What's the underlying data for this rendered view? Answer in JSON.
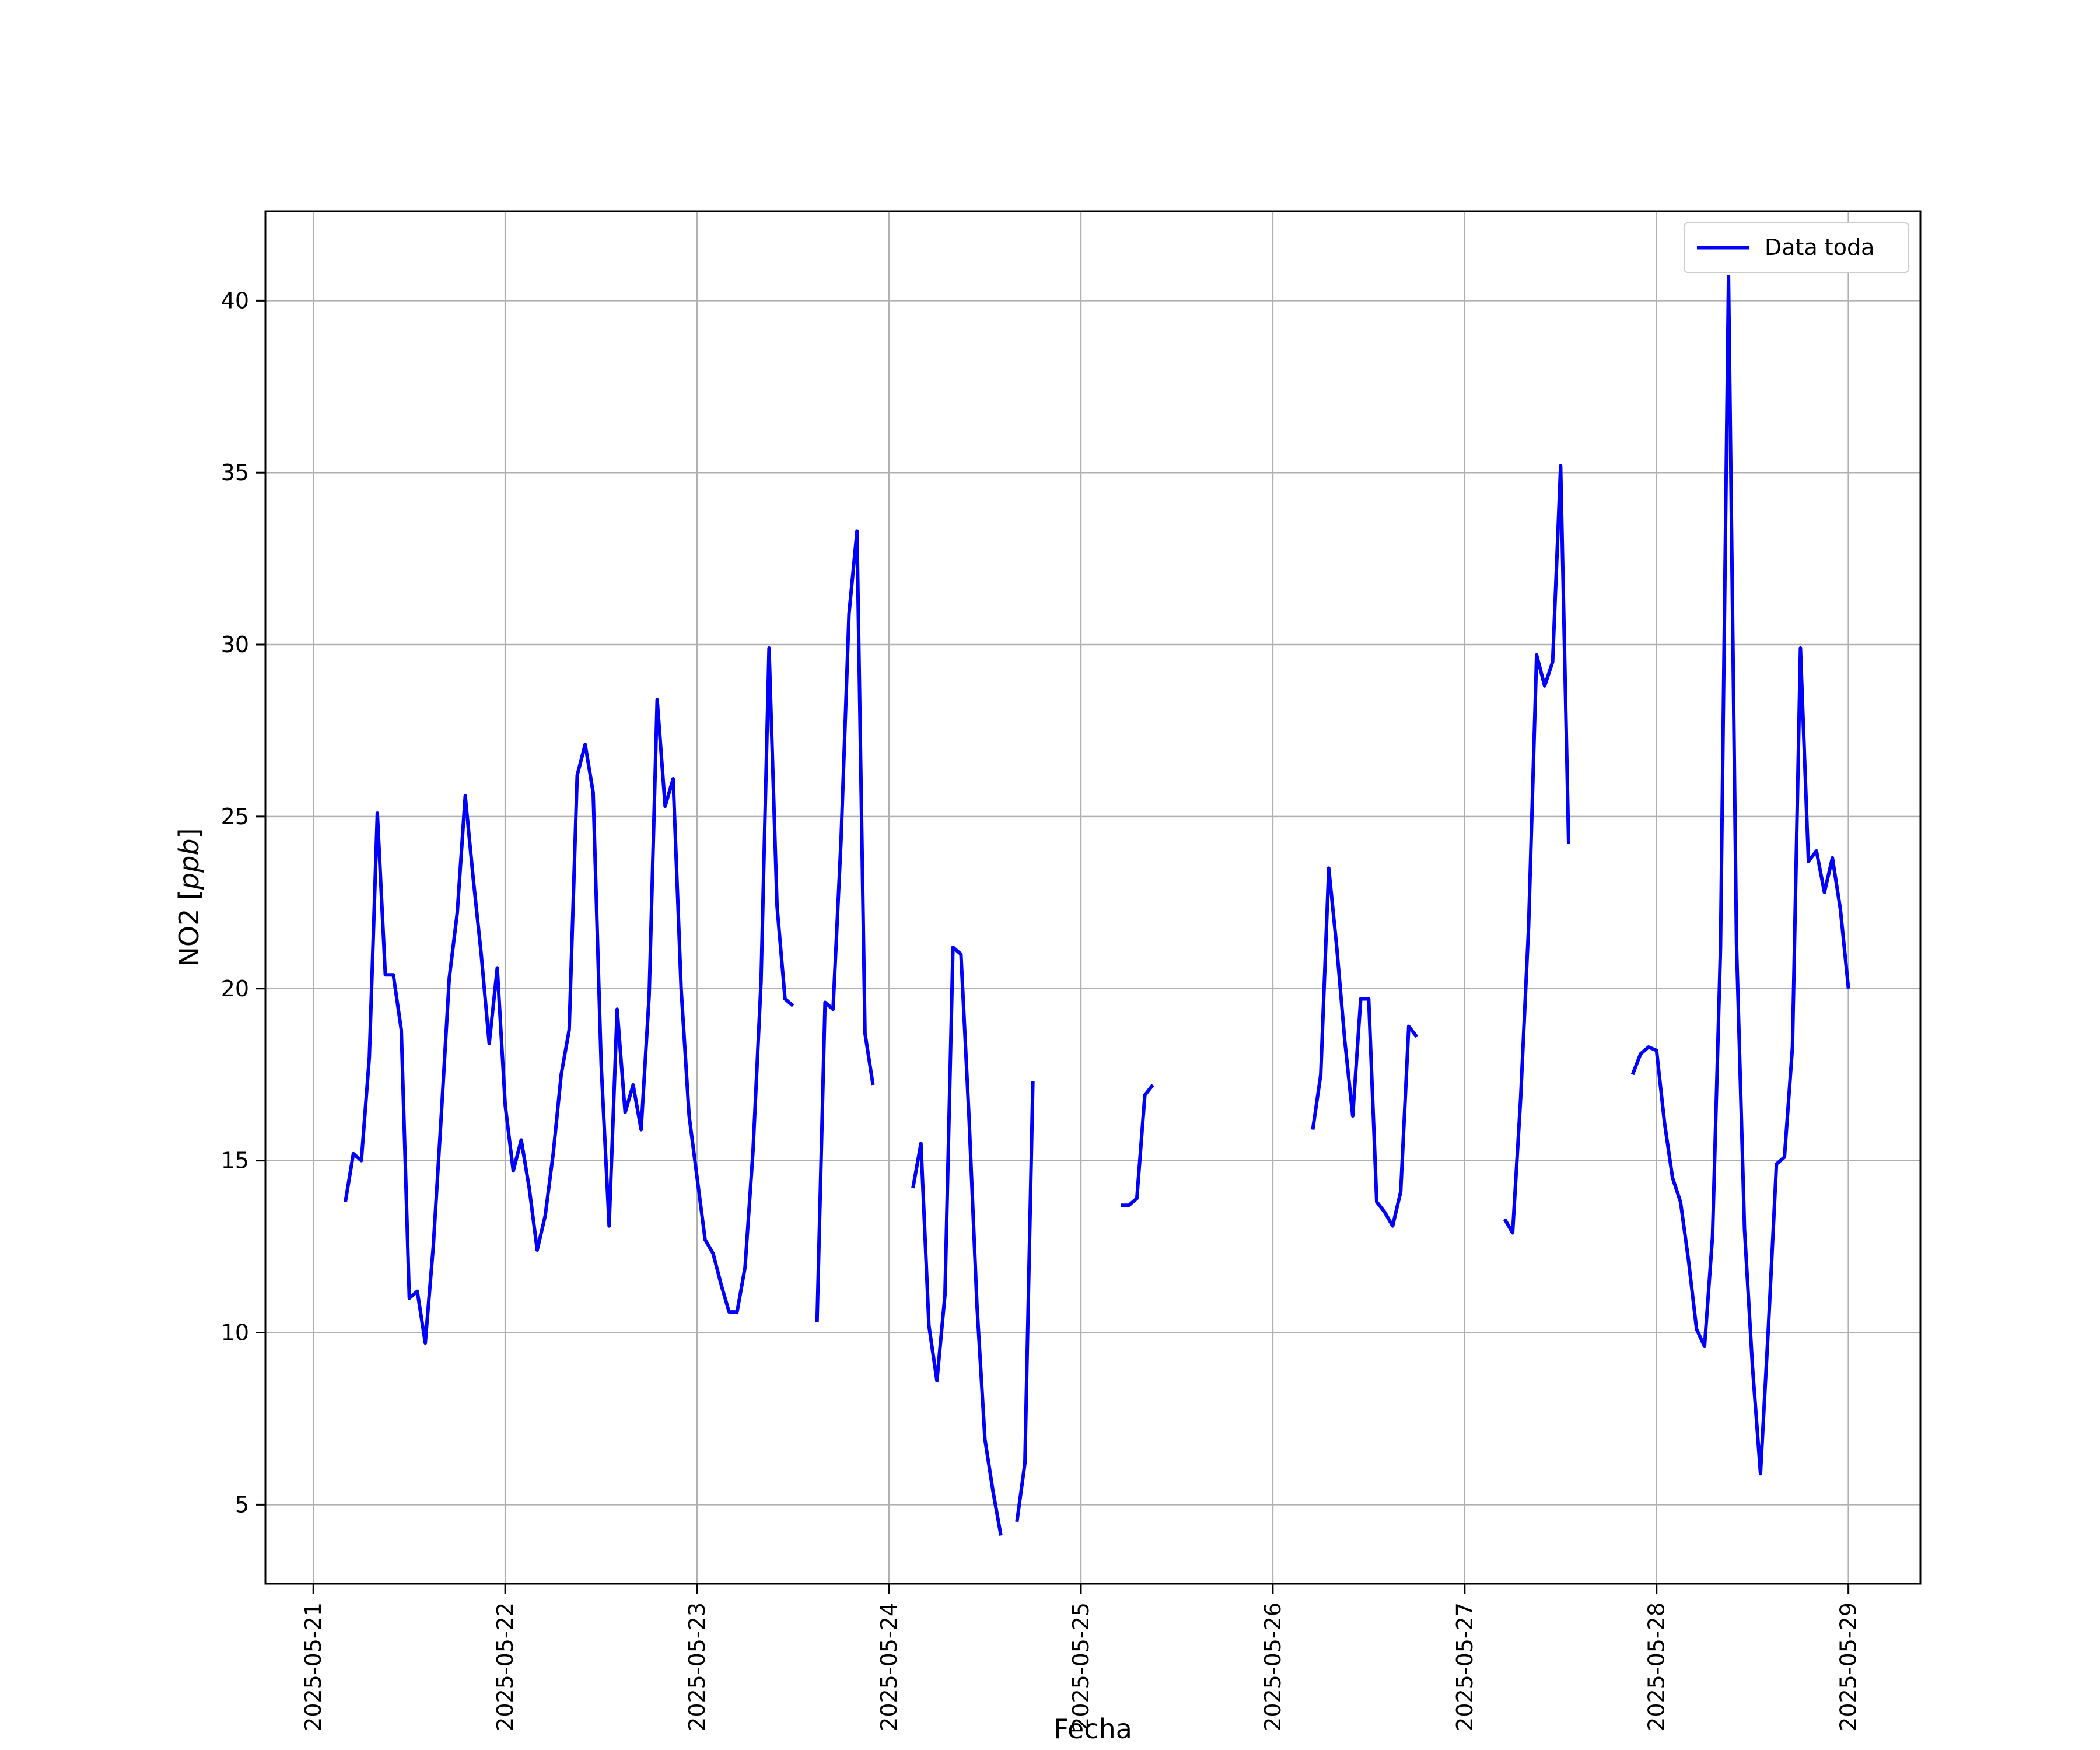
{
  "chart_data": {
    "type": "line",
    "xlabel": "Fecha",
    "ylabel": "NO2 [ppb]",
    "ylabel_text": "NO2 [",
    "ylabel_unit": "ppb",
    "ylabel_close": "]",
    "x_type": "datetime",
    "xlim": [
      "2025-05-20 18:00",
      "2025-05-29 09:00"
    ],
    "ylim": [
      2.7,
      42.6
    ],
    "x_ticks": [
      "2025-05-21",
      "2025-05-22",
      "2025-05-23",
      "2025-05-24",
      "2025-05-25",
      "2025-05-26",
      "2025-05-27",
      "2025-05-28",
      "2025-05-29"
    ],
    "y_ticks": [
      5,
      10,
      15,
      20,
      25,
      30,
      35,
      40
    ],
    "grid": true,
    "legend_position": "top-right",
    "series": [
      {
        "name": "Data toda",
        "color": "#0000ff",
        "segments": [
          [
            [
              "2025-05-21 04:00",
              13.8
            ],
            [
              "2025-05-21 05:00",
              15.2
            ],
            [
              "2025-05-21 06:00",
              15.0
            ],
            [
              "2025-05-21 07:00",
              18.0
            ],
            [
              "2025-05-21 08:00",
              25.1
            ],
            [
              "2025-05-21 09:00",
              20.4
            ],
            [
              "2025-05-21 10:00",
              20.4
            ],
            [
              "2025-05-21 11:00",
              18.8
            ],
            [
              "2025-05-21 12:00",
              11.0
            ],
            [
              "2025-05-21 13:00",
              11.2
            ],
            [
              "2025-05-21 14:00",
              9.7
            ],
            [
              "2025-05-21 15:00",
              12.5
            ],
            [
              "2025-05-21 16:00",
              16.3
            ],
            [
              "2025-05-21 17:00",
              20.3
            ],
            [
              "2025-05-21 18:00",
              22.2
            ],
            [
              "2025-05-21 19:00",
              25.6
            ],
            [
              "2025-05-21 20:00",
              23.2
            ],
            [
              "2025-05-21 21:00",
              21.0
            ],
            [
              "2025-05-21 22:00",
              18.4
            ],
            [
              "2025-05-21 23:00",
              20.6
            ],
            [
              "2025-05-22 00:00",
              16.6
            ],
            [
              "2025-05-22 01:00",
              14.7
            ],
            [
              "2025-05-22 02:00",
              15.6
            ],
            [
              "2025-05-22 03:00",
              14.2
            ],
            [
              "2025-05-22 04:00",
              12.4
            ],
            [
              "2025-05-22 05:00",
              13.4
            ],
            [
              "2025-05-22 06:00",
              15.2
            ],
            [
              "2025-05-22 07:00",
              17.5
            ],
            [
              "2025-05-22 08:00",
              18.8
            ],
            [
              "2025-05-22 09:00",
              26.2
            ],
            [
              "2025-05-22 10:00",
              27.1
            ],
            [
              "2025-05-22 11:00",
              25.7
            ],
            [
              "2025-05-22 12:00",
              17.8
            ],
            [
              "2025-05-22 13:00",
              13.1
            ],
            [
              "2025-05-22 14:00",
              19.4
            ],
            [
              "2025-05-22 15:00",
              16.4
            ],
            [
              "2025-05-22 16:00",
              17.2
            ],
            [
              "2025-05-22 17:00",
              15.9
            ],
            [
              "2025-05-22 18:00",
              19.8
            ],
            [
              "2025-05-22 19:00",
              28.4
            ],
            [
              "2025-05-22 20:00",
              25.3
            ],
            [
              "2025-05-22 21:00",
              26.1
            ],
            [
              "2025-05-22 22:00",
              20.0
            ],
            [
              "2025-05-22 23:00",
              16.3
            ],
            [
              "2025-05-23 00:00",
              14.5
            ],
            [
              "2025-05-23 01:00",
              12.7
            ],
            [
              "2025-05-23 02:00",
              12.3
            ],
            [
              "2025-05-23 03:00",
              11.4
            ],
            [
              "2025-05-23 04:00",
              10.6
            ],
            [
              "2025-05-23 05:00",
              10.6
            ],
            [
              "2025-05-23 06:00",
              11.9
            ],
            [
              "2025-05-23 07:00",
              15.3
            ],
            [
              "2025-05-23 08:00",
              20.2
            ],
            [
              "2025-05-23 09:00",
              29.9
            ],
            [
              "2025-05-23 10:00",
              22.4
            ],
            [
              "2025-05-23 11:00",
              19.7
            ],
            [
              "2025-05-23 12:00",
              19.5
            ]
          ],
          [
            [
              "2025-05-23 15:00",
              10.3
            ],
            [
              "2025-05-23 16:00",
              19.6
            ],
            [
              "2025-05-23 17:00",
              19.4
            ],
            [
              "2025-05-23 18:00",
              24.3
            ],
            [
              "2025-05-23 19:00",
              30.9
            ],
            [
              "2025-05-23 20:00",
              33.3
            ],
            [
              "2025-05-23 21:00",
              18.7
            ],
            [
              "2025-05-23 22:00",
              17.2
            ]
          ],
          [
            [
              "2025-05-24 03:00",
              14.2
            ],
            [
              "2025-05-24 04:00",
              15.5
            ],
            [
              "2025-05-24 05:00",
              10.2
            ],
            [
              "2025-05-24 06:00",
              8.6
            ],
            [
              "2025-05-24 07:00",
              11.1
            ],
            [
              "2025-05-24 08:00",
              21.2
            ],
            [
              "2025-05-24 09:00",
              21.0
            ],
            [
              "2025-05-24 10:00",
              16.3
            ],
            [
              "2025-05-24 11:00",
              10.8
            ],
            [
              "2025-05-24 12:00",
              6.9
            ],
            [
              "2025-05-24 13:00",
              5.4
            ],
            [
              "2025-05-24 14:00",
              4.1
            ]
          ],
          [
            [
              "2025-05-24 16:00",
              4.5
            ],
            [
              "2025-05-24 17:00",
              6.2
            ],
            [
              "2025-05-24 18:00",
              17.3
            ]
          ],
          [
            [
              "2025-05-25 05:00",
              13.7
            ],
            [
              "2025-05-25 06:00",
              13.7
            ],
            [
              "2025-05-25 07:00",
              13.9
            ],
            [
              "2025-05-25 08:00",
              16.9
            ],
            [
              "2025-05-25 09:00",
              17.2
            ]
          ],
          [
            [
              "2025-05-26 05:00",
              15.9
            ],
            [
              "2025-05-26 06:00",
              17.5
            ],
            [
              "2025-05-26 07:00",
              23.5
            ],
            [
              "2025-05-26 08:00",
              21.2
            ],
            [
              "2025-05-26 09:00",
              18.5
            ],
            [
              "2025-05-26 10:00",
              16.3
            ],
            [
              "2025-05-26 11:00",
              19.7
            ],
            [
              "2025-05-26 12:00",
              19.7
            ],
            [
              "2025-05-26 13:00",
              13.8
            ],
            [
              "2025-05-26 14:00",
              13.5
            ],
            [
              "2025-05-26 15:00",
              13.1
            ],
            [
              "2025-05-26 16:00",
              14.1
            ],
            [
              "2025-05-26 17:00",
              18.9
            ],
            [
              "2025-05-26 18:00",
              18.6
            ]
          ],
          [
            [
              "2025-05-27 05:00",
              13.3
            ],
            [
              "2025-05-27 06:00",
              12.9
            ],
            [
              "2025-05-27 07:00",
              16.8
            ],
            [
              "2025-05-27 08:00",
              21.8
            ],
            [
              "2025-05-27 09:00",
              29.7
            ],
            [
              "2025-05-27 10:00",
              28.8
            ],
            [
              "2025-05-27 11:00",
              29.5
            ],
            [
              "2025-05-27 12:00",
              35.2
            ],
            [
              "2025-05-27 13:00",
              24.2
            ]
          ],
          [
            [
              "2025-05-27 21:00",
              17.5
            ],
            [
              "2025-05-27 22:00",
              18.1
            ],
            [
              "2025-05-27 23:00",
              18.3
            ],
            [
              "2025-05-28 00:00",
              18.2
            ],
            [
              "2025-05-28 01:00",
              16.1
            ],
            [
              "2025-05-28 02:00",
              14.5
            ],
            [
              "2025-05-28 03:00",
              13.8
            ],
            [
              "2025-05-28 04:00",
              12.1
            ],
            [
              "2025-05-28 05:00",
              10.1
            ],
            [
              "2025-05-28 06:00",
              9.6
            ],
            [
              "2025-05-28 07:00",
              12.8
            ],
            [
              "2025-05-28 08:00",
              21.2
            ],
            [
              "2025-05-28 09:00",
              40.7
            ],
            [
              "2025-05-28 10:00",
              21.3
            ],
            [
              "2025-05-28 11:00",
              13.0
            ],
            [
              "2025-05-28 12:00",
              9.0
            ],
            [
              "2025-05-28 13:00",
              5.9
            ],
            [
              "2025-05-28 14:00",
              10.2
            ],
            [
              "2025-05-28 15:00",
              14.9
            ],
            [
              "2025-05-28 16:00",
              15.1
            ],
            [
              "2025-05-28 17:00",
              18.3
            ],
            [
              "2025-05-28 18:00",
              29.9
            ],
            [
              "2025-05-28 19:00",
              23.7
            ],
            [
              "2025-05-28 20:00",
              24.0
            ],
            [
              "2025-05-28 21:00",
              22.8
            ],
            [
              "2025-05-28 22:00",
              23.8
            ],
            [
              "2025-05-28 23:00",
              22.3
            ],
            [
              "2025-05-29 00:00",
              20.0
            ]
          ]
        ]
      }
    ]
  }
}
